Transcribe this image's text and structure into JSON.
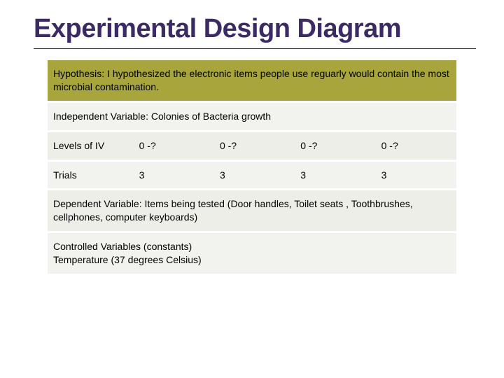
{
  "title": "Experimental Design Diagram",
  "colors": {
    "title_color": "#3b2a66",
    "row_olive": "#a7a53c",
    "row_light": "#f2f2ee",
    "row_light2": "#eeeee9",
    "background": "#ffffff"
  },
  "rows": {
    "hypothesis": "Hypothesis:  I hypothesized the electronic items people use reguarly would contain the most microbial contamination.",
    "independent_variable": "Independent Variable: Colonies of Bacteria growth",
    "levels": {
      "label": "Levels of IV",
      "values": [
        "0 -?",
        "0 -?",
        "0 -?",
        "0 -?"
      ]
    },
    "trials": {
      "label": "Trials",
      "values": [
        "3",
        "3",
        "3",
        "3"
      ]
    },
    "dependent_variable": "Dependent Variable: Items being tested (Door handles, Toilet seats , Toothbrushes, cellphones, computer keyboards)",
    "controlled_variables": "Controlled Variables (constants)\nTemperature (37 degrees Celsius)"
  },
  "typography": {
    "title_fontsize": 38,
    "body_fontsize": 14,
    "title_weight": 700
  }
}
